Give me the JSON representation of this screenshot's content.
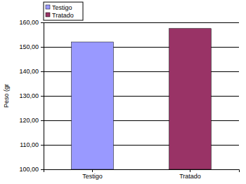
{
  "chart_data": {
    "type": "bar",
    "y_label": "Peso (gr",
    "categories": [
      "Testigo",
      "Tratado"
    ],
    "series": [
      {
        "name": "Testigo",
        "color": "#9999ff",
        "values": [
          152,
          null
        ]
      },
      {
        "name": "Tratado",
        "color": "#993366",
        "values": [
          null,
          157.5
        ]
      }
    ],
    "ylim": [
      100,
      160
    ],
    "yticks": [
      {
        "value": 100,
        "label": "100,00"
      },
      {
        "value": 110,
        "label": "110,00"
      },
      {
        "value": 120,
        "label": "120,00"
      },
      {
        "value": 130,
        "label": "130,00"
      },
      {
        "value": 140,
        "label": "140,00"
      },
      {
        "value": 150,
        "label": "150,00"
      },
      {
        "value": 160,
        "label": "160,00"
      }
    ],
    "grid": true,
    "legend": "top-left"
  }
}
